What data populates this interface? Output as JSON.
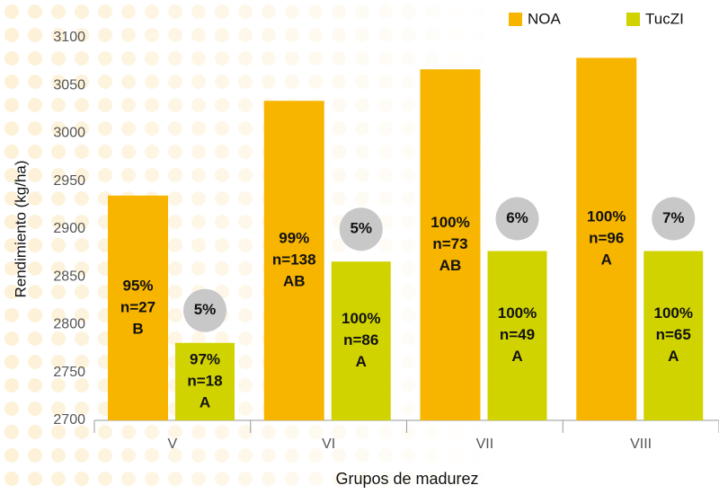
{
  "chart_data": {
    "type": "bar",
    "y_label": "Rendimiento (kg/ha)",
    "x_label": "Grupos de madurez",
    "categories": [
      "V",
      "VI",
      "VII",
      "VIII"
    ],
    "series": [
      {
        "name": "NOA",
        "color": "#f7b500",
        "values": [
          2935,
          3034,
          3067,
          3079
        ],
        "bar_labels": [
          [
            "95%",
            "n=27",
            "B"
          ],
          [
            "99%",
            "n=138",
            "AB"
          ],
          [
            "100%",
            "n=73",
            "AB"
          ],
          [
            "100%",
            "n=96",
            "A"
          ]
        ]
      },
      {
        "name": "TucZI",
        "color": "#d0d300",
        "values": [
          2781,
          2866,
          2877,
          2877
        ],
        "bar_labels": [
          [
            "97%",
            "n=18",
            "A"
          ],
          [
            "100%",
            "n=86",
            "A"
          ],
          [
            "100%",
            "n=49",
            "A"
          ],
          [
            "100%",
            "n=65",
            "A"
          ]
        ],
        "circle_labels": [
          "5%",
          "5%",
          "6%",
          "7%"
        ]
      }
    ],
    "ylim": [
      2700,
      3100
    ],
    "yticks": [
      2700,
      2750,
      2800,
      2850,
      2900,
      2950,
      3000,
      3050,
      3100
    ],
    "legend": "top-right"
  }
}
